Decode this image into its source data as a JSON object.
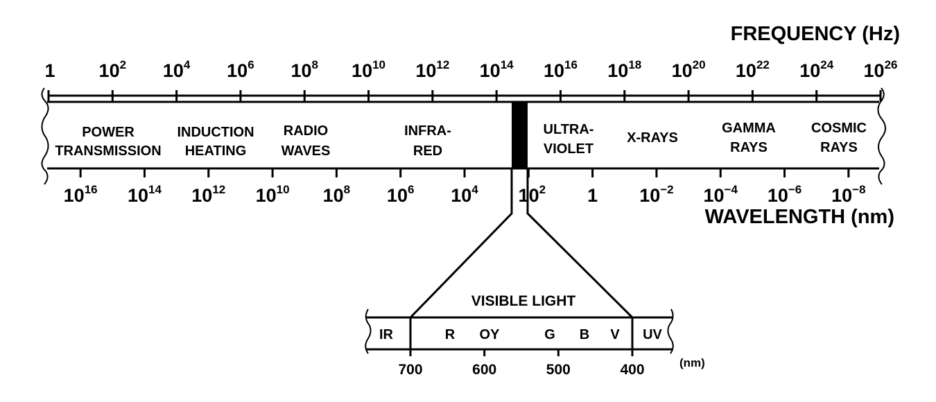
{
  "spectrum": {
    "frequency_title": "FREQUENCY (Hz)",
    "wavelength_title": "WAVELENGTH (nm)",
    "frequency_ticks": [
      {
        "base": "1",
        "exp": ""
      },
      {
        "base": "10",
        "exp": "2"
      },
      {
        "base": "10",
        "exp": "4"
      },
      {
        "base": "10",
        "exp": "6"
      },
      {
        "base": "10",
        "exp": "8"
      },
      {
        "base": "10",
        "exp": "10"
      },
      {
        "base": "10",
        "exp": "12"
      },
      {
        "base": "10",
        "exp": "14"
      },
      {
        "base": "10",
        "exp": "16"
      },
      {
        "base": "10",
        "exp": "18"
      },
      {
        "base": "10",
        "exp": "20"
      },
      {
        "base": "10",
        "exp": "22"
      },
      {
        "base": "10",
        "exp": "24"
      },
      {
        "base": "10",
        "exp": "26"
      }
    ],
    "wavelength_ticks": [
      {
        "base": "10",
        "exp": "16"
      },
      {
        "base": "10",
        "exp": "14"
      },
      {
        "base": "10",
        "exp": "12"
      },
      {
        "base": "10",
        "exp": "10"
      },
      {
        "base": "10",
        "exp": "8"
      },
      {
        "base": "10",
        "exp": "6"
      },
      {
        "base": "10",
        "exp": "4"
      },
      {
        "base": "10",
        "exp": "2"
      },
      {
        "base": "1",
        "exp": ""
      },
      {
        "base": "10",
        "exp": "−2"
      },
      {
        "base": "10",
        "exp": "−4"
      },
      {
        "base": "10",
        "exp": "−6"
      },
      {
        "base": "10",
        "exp": "−8"
      }
    ],
    "regions": [
      {
        "line1": "POWER",
        "line2": "TRANSMISSION"
      },
      {
        "line1": "INDUCTION",
        "line2": "HEATING"
      },
      {
        "line1": "RADIO",
        "line2": "WAVES"
      },
      {
        "line1": "INFRA-",
        "line2": "RED"
      },
      {
        "line1": "ULTRA-",
        "line2": "VIOLET"
      },
      {
        "line1": "X-RAYS",
        "line2": ""
      },
      {
        "line1": "GAMMA",
        "line2": "RAYS"
      },
      {
        "line1": "COSMIC",
        "line2": "RAYS"
      }
    ]
  },
  "visible": {
    "title": "VISIBLE LIGHT",
    "bands": [
      "IR",
      "R",
      "OY",
      "G",
      "B",
      "V",
      "UV"
    ],
    "ticks": [
      "700",
      "600",
      "500",
      "400"
    ],
    "unit": "(nm)"
  }
}
